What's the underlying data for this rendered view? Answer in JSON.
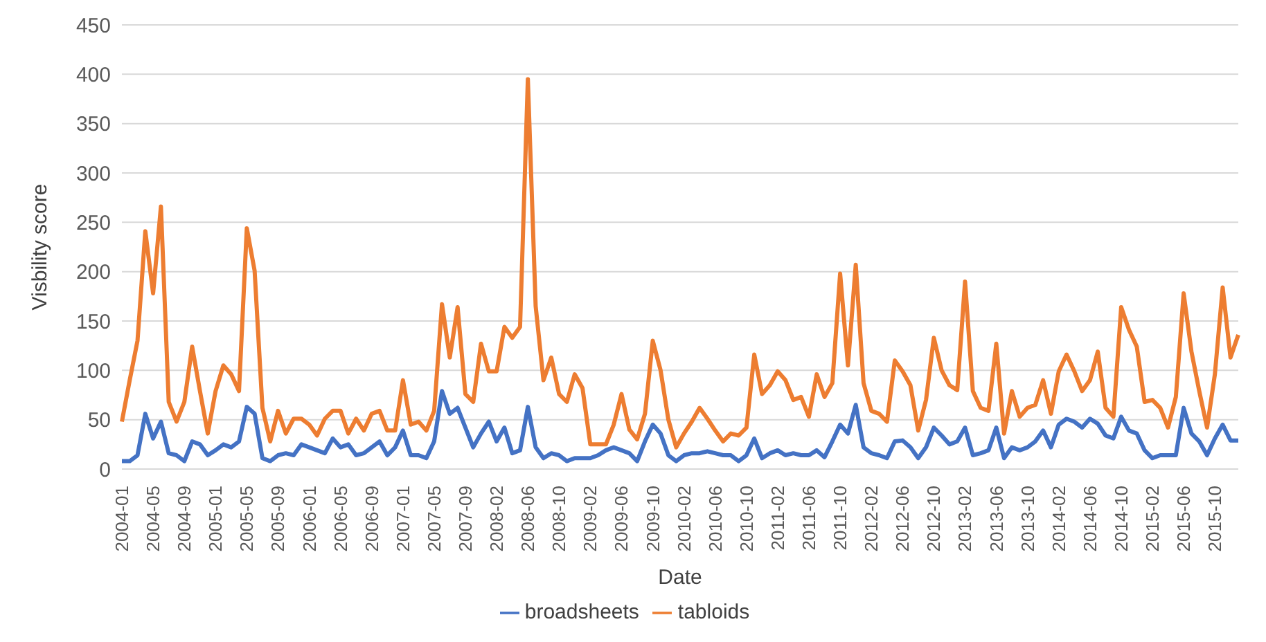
{
  "chart_data": {
    "type": "line",
    "xlabel": "Date",
    "ylabel": "Visbility score",
    "categories": [
      "2004-01",
      null,
      null,
      null,
      "2004-05",
      null,
      null,
      null,
      "2004-09",
      null,
      null,
      null,
      "2005-01",
      null,
      null,
      null,
      "2005-05",
      null,
      null,
      null,
      "2005-09",
      null,
      null,
      null,
      "2006-01",
      null,
      null,
      null,
      "2006-05",
      null,
      null,
      null,
      "2006-09",
      null,
      null,
      null,
      "2007-01",
      null,
      null,
      null,
      "2007-05",
      null,
      null,
      null,
      "2007-09",
      null,
      null,
      null,
      "2008-02",
      null,
      null,
      null,
      "2008-06",
      null,
      null,
      null,
      "2008-10",
      null,
      null,
      null,
      "2009-02",
      null,
      null,
      null,
      "2009-06",
      null,
      null,
      null,
      "2009-10",
      null,
      null,
      null,
      "2010-02",
      null,
      null,
      null,
      "2010-06",
      null,
      null,
      null,
      "2010-10",
      null,
      null,
      null,
      "2011-02",
      null,
      null,
      null,
      "2011-06",
      null,
      null,
      null,
      "2011-10",
      null,
      null,
      null,
      "2012-02",
      null,
      null,
      null,
      "2012-06",
      null,
      null,
      null,
      "2012-10",
      null,
      null,
      null,
      "2013-02",
      null,
      null,
      null,
      "2013-06",
      null,
      null,
      null,
      "2013-10",
      null,
      null,
      null,
      "2014-02",
      null,
      null,
      null,
      "2014-06",
      null,
      null,
      null,
      "2014-10",
      null,
      null,
      null,
      "2015-02",
      null,
      null,
      null,
      "2015-06",
      null,
      null,
      null,
      "2015-10",
      null,
      null,
      null
    ],
    "series": [
      {
        "name": "broadsheets",
        "color": "#4472c4",
        "values": [
          8,
          8,
          14,
          56,
          31,
          48,
          16,
          14,
          8,
          28,
          25,
          14,
          19,
          25,
          22,
          28,
          63,
          56,
          11,
          8,
          14,
          16,
          14,
          25,
          22,
          19,
          16,
          31,
          22,
          25,
          14,
          16,
          22,
          28,
          14,
          22,
          39,
          14,
          14,
          11,
          28,
          79,
          56,
          62,
          42,
          22,
          36,
          48,
          28,
          42,
          16,
          19,
          63,
          22,
          11,
          16,
          14,
          8,
          11,
          11,
          11,
          14,
          19,
          22,
          19,
          16,
          8,
          28,
          45,
          36,
          14,
          8,
          14,
          16,
          16,
          18,
          16,
          14,
          14,
          8,
          14,
          31,
          11,
          16,
          19,
          14,
          16,
          14,
          14,
          19,
          12,
          28,
          45,
          36,
          65,
          22,
          16,
          14,
          11,
          28,
          29,
          22,
          11,
          22,
          42,
          34,
          25,
          28,
          42,
          14,
          16,
          19,
          42,
          11,
          22,
          19,
          22,
          28,
          39,
          22,
          45,
          51,
          48,
          42,
          51,
          46,
          34,
          31,
          53,
          39,
          36,
          19,
          11,
          14,
          14,
          14,
          62,
          36,
          28,
          14,
          31,
          45,
          29,
          29
        ]
      },
      {
        "name": "tabloids",
        "color": "#ed7d31",
        "values": [
          48,
          90,
          130,
          241,
          178,
          266,
          68,
          48,
          68,
          124,
          79,
          36,
          79,
          105,
          96,
          79,
          244,
          201,
          62,
          28,
          59,
          36,
          51,
          51,
          45,
          34,
          51,
          59,
          59,
          36,
          51,
          39,
          56,
          59,
          39,
          39,
          90,
          45,
          48,
          39,
          59,
          167,
          113,
          164,
          76,
          68,
          127,
          99,
          99,
          144,
          133,
          144,
          395,
          165,
          90,
          113,
          76,
          68,
          96,
          82,
          25,
          25,
          25,
          45,
          76,
          40,
          30,
          56,
          130,
          100,
          50,
          22,
          36,
          48,
          62,
          51,
          39,
          28,
          36,
          34,
          42,
          116,
          76,
          85,
          99,
          90,
          70,
          73,
          53,
          96,
          73,
          87,
          198,
          105,
          207,
          87,
          59,
          56,
          48,
          110,
          99,
          85,
          39,
          70,
          133,
          100,
          85,
          80,
          190,
          79,
          62,
          59,
          127,
          36,
          79,
          53,
          62,
          65,
          90,
          56,
          99,
          116,
          99,
          79,
          90,
          119,
          62,
          53,
          164,
          141,
          124,
          68,
          70,
          62,
          42,
          73,
          178,
          119,
          79,
          42,
          96,
          184,
          113,
          136
        ]
      }
    ],
    "ylim": [
      0,
      450
    ],
    "yticks": [
      0,
      50,
      100,
      150,
      200,
      250,
      300,
      350,
      400,
      450
    ],
    "grid": "y",
    "legend": "bottom",
    "marker": "none",
    "line_style": "solid"
  }
}
